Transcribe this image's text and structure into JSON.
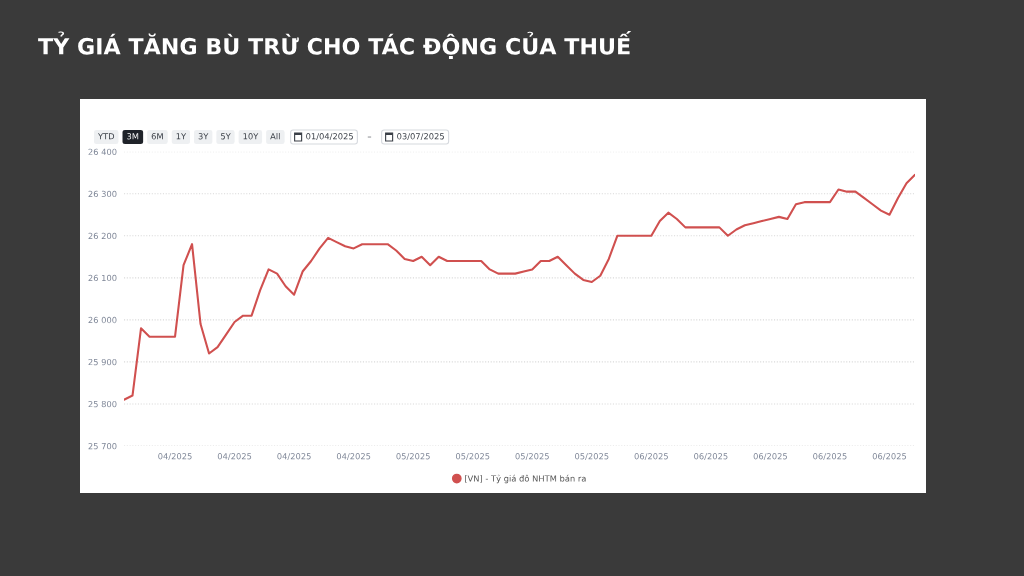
{
  "chart_data": {
    "type": "line",
    "title": "TỶ GIÁ TĂNG BÙ TRỪ CHO TÁC ĐỘNG CỦA THUẾ",
    "annotations": [
      "YTD",
      "3M",
      "6M",
      "1Y",
      "3Y",
      "5Y",
      "10Y",
      "All",
      "01/04/2025",
      "–",
      "03/07/2025"
    ],
    "x": [
      "2025-04-01",
      "2025-04-02",
      "2025-04-03",
      "2025-04-04",
      "2025-04-05",
      "2025-04-06",
      "2025-04-07",
      "2025-04-08",
      "2025-04-09",
      "2025-04-10",
      "2025-04-11",
      "2025-04-12",
      "2025-04-13",
      "2025-04-14",
      "2025-04-15",
      "2025-04-16",
      "2025-04-17",
      "2025-04-18",
      "2025-04-19",
      "2025-04-20",
      "2025-04-21",
      "2025-04-22",
      "2025-04-23",
      "2025-04-24",
      "2025-04-25",
      "2025-04-26",
      "2025-04-27",
      "2025-04-28",
      "2025-04-29",
      "2025-04-30",
      "2025-05-01",
      "2025-05-02",
      "2025-05-03",
      "2025-05-04",
      "2025-05-05",
      "2025-05-06",
      "2025-05-07",
      "2025-05-08",
      "2025-05-09",
      "2025-05-10",
      "2025-05-11",
      "2025-05-12",
      "2025-05-13",
      "2025-05-14",
      "2025-05-15",
      "2025-05-16",
      "2025-05-17",
      "2025-05-18",
      "2025-05-19",
      "2025-05-20",
      "2025-05-21",
      "2025-05-22",
      "2025-05-23",
      "2025-05-24",
      "2025-05-25",
      "2025-05-26",
      "2025-05-27",
      "2025-05-28",
      "2025-05-29",
      "2025-05-30",
      "2025-05-31",
      "2025-06-01",
      "2025-06-02",
      "2025-06-03",
      "2025-06-04",
      "2025-06-05",
      "2025-06-06",
      "2025-06-07",
      "2025-06-08",
      "2025-06-09",
      "2025-06-10",
      "2025-06-11",
      "2025-06-12",
      "2025-06-13",
      "2025-06-14",
      "2025-06-15",
      "2025-06-16",
      "2025-06-17",
      "2025-06-18",
      "2025-06-19",
      "2025-06-20",
      "2025-06-21",
      "2025-06-22",
      "2025-06-23",
      "2025-06-24",
      "2025-06-25",
      "2025-06-26",
      "2025-06-27",
      "2025-06-28",
      "2025-06-29",
      "2025-06-30",
      "2025-07-01",
      "2025-07-02",
      "2025-07-03"
    ],
    "series": [
      {
        "name": "[VN] - Tỷ giá đô NHTM bán ra",
        "color": "#d0504f",
        "values": [
          25810,
          25820,
          25980,
          25960,
          25960,
          25960,
          25960,
          26130,
          26180,
          25990,
          25920,
          25935,
          25965,
          25995,
          26010,
          26010,
          26070,
          26120,
          26110,
          26080,
          26060,
          26115,
          26140,
          26170,
          26195,
          26185,
          26175,
          26170,
          26180,
          26180,
          26180,
          26180,
          26165,
          26145,
          26140,
          26150,
          26130,
          26150,
          26140,
          26140,
          26140,
          26140,
          26140,
          26120,
          26110,
          26110,
          26110,
          26115,
          26120,
          26140,
          26140,
          26150,
          26130,
          26110,
          26095,
          26090,
          26105,
          26145,
          26200,
          26200,
          26200,
          26200,
          26200,
          26235,
          26255,
          26240,
          26220,
          26220,
          26220,
          26220,
          26220,
          26200,
          26215,
          26225,
          26230,
          26235,
          26240,
          26245,
          26240,
          26275,
          26280,
          26280,
          26280,
          26280,
          26310,
          26305,
          26305,
          26290,
          26275,
          26260,
          26250,
          26290,
          26325,
          26345
        ]
      }
    ],
    "xlim": [
      "2025-04-01",
      "2025-07-03"
    ],
    "xticks": [
      {
        "value": "2025-04-07",
        "label": "04/2025"
      },
      {
        "value": "2025-04-14",
        "label": "04/2025"
      },
      {
        "value": "2025-04-21",
        "label": "04/2025"
      },
      {
        "value": "2025-04-28",
        "label": "04/2025"
      },
      {
        "value": "2025-05-05",
        "label": "05/2025"
      },
      {
        "value": "2025-05-12",
        "label": "05/2025"
      },
      {
        "value": "2025-05-19",
        "label": "05/2025"
      },
      {
        "value": "2025-05-26",
        "label": "05/2025"
      },
      {
        "value": "2025-06-02",
        "label": "06/2025"
      },
      {
        "value": "2025-06-09",
        "label": "06/2025"
      },
      {
        "value": "2025-06-16",
        "label": "06/2025"
      },
      {
        "value": "2025-06-23",
        "label": "06/2025"
      },
      {
        "value": "2025-06-30",
        "label": "06/2025"
      }
    ],
    "ylim": [
      25700,
      26400
    ],
    "yticks": [
      {
        "value": 25700,
        "label": "25 700"
      },
      {
        "value": 25800,
        "label": "25 800"
      },
      {
        "value": 25900,
        "label": "25 900"
      },
      {
        "value": 26000,
        "label": "26 000"
      },
      {
        "value": 26100,
        "label": "26 100"
      },
      {
        "value": 26200,
        "label": "26 200"
      },
      {
        "value": 26300,
        "label": "26 300"
      },
      {
        "value": 26400,
        "label": "26 400"
      }
    ],
    "grid": "y",
    "legend": "bottom"
  }
}
